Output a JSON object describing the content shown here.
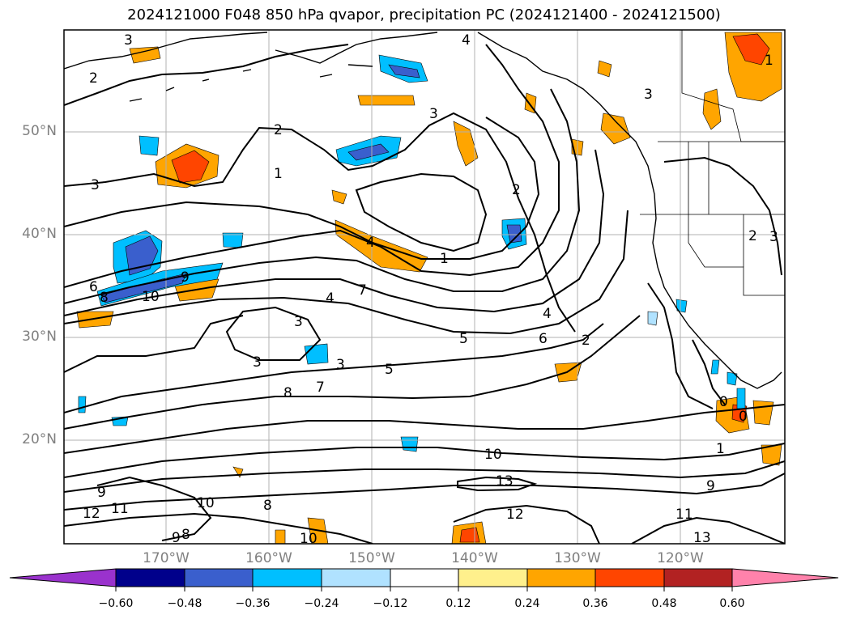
{
  "title": "2024121000 F048 850 hPa qvapor, precipitation PC (2024121400 - 2024121500)",
  "map": {
    "lat_labels": [
      "50°N",
      "40°N",
      "30°N",
      "20°N"
    ],
    "lon_labels": [
      "170°W",
      "160°W",
      "150°W",
      "140°W",
      "130°W",
      "120°W"
    ],
    "contour_labels": [
      "3",
      "2",
      "3",
      "2",
      "3",
      "1",
      "4",
      "3",
      "2",
      "1",
      "4",
      "1",
      "6",
      "9",
      "8",
      "10",
      "7",
      "4",
      "3",
      "5",
      "3",
      "5",
      "6",
      "2",
      "4",
      "8",
      "7",
      "3",
      "10",
      "13",
      "12",
      "9",
      "11",
      "12",
      "9",
      "9",
      "8",
      "10",
      "8",
      "10",
      "13",
      "11",
      "2",
      "3",
      "1",
      "0",
      "0"
    ],
    "colors": {
      "frame": "#000000",
      "grid": "#b0b0b0",
      "contour": "#000000",
      "coast": "#000000"
    }
  },
  "colorbar": {
    "ticks": [
      "−0.60",
      "−0.48",
      "−0.36",
      "−0.24",
      "−0.12",
      "0.12",
      "0.24",
      "0.36",
      "0.48",
      "0.60"
    ],
    "colors": [
      "#9a32cd",
      "#00008b",
      "#3a5fcd",
      "#00bfff",
      "#b0e2ff",
      "#ffffff",
      "#fff08c",
      "#ffa500",
      "#ff4500",
      "#b22222",
      "#ff82ab"
    ]
  }
}
